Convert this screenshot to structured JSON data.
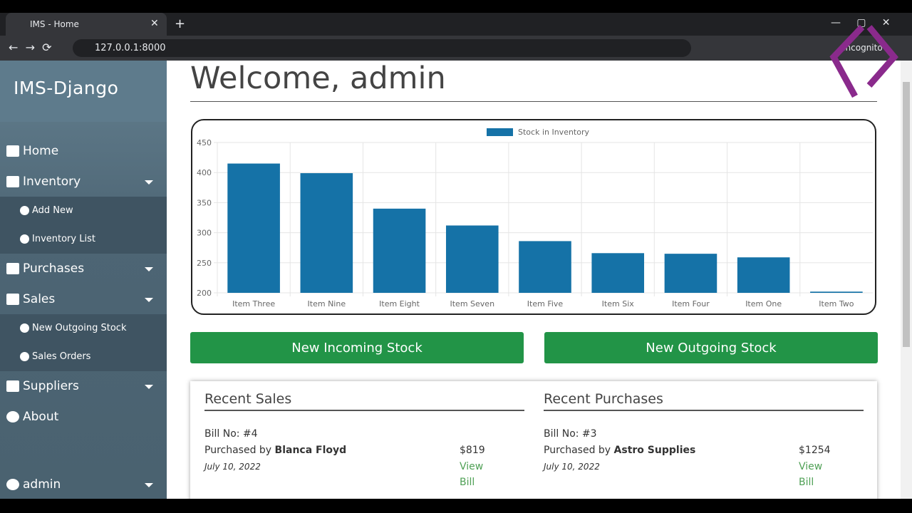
{
  "browser": {
    "tab_title": "IMS - Home",
    "url": "127.0.0.1:8000",
    "profile": "Incognito"
  },
  "sidebar": {
    "brand": "IMS-Django",
    "nav": [
      "Home",
      "Inventory",
      "Add New",
      "Inventory List",
      "Purchases",
      "Sales",
      "New Outgoing Stock",
      "Sales Orders",
      "Suppliers",
      "About"
    ],
    "user": "admin"
  },
  "header": {
    "title": "Welcome, admin"
  },
  "chart_data": {
    "type": "bar",
    "legend": "Stock in Inventory",
    "color": "#1572a7",
    "categories": [
      "Item Three",
      "Item Nine",
      "Item Eight",
      "Item Seven",
      "Item Five",
      "Item Six",
      "Item Four",
      "Item One",
      "Item Two"
    ],
    "values": [
      415,
      399,
      340,
      312,
      286,
      266,
      265,
      259,
      202
    ],
    "ylim": [
      200,
      450
    ],
    "yticks": [
      200,
      250,
      300,
      350,
      400,
      450
    ],
    "grid": true
  },
  "buttons": [
    "New Incoming Stock",
    "New Outgoing Stock"
  ],
  "recent": [
    {
      "title": "Recent Sales",
      "bill": "Bill No: #4",
      "by": "Purchased by",
      "name": "Blanca Floyd",
      "amount": "$819",
      "date": "July 10, 2022",
      "link": "View Bill"
    },
    {
      "title": "Recent Purchases",
      "bill": "Bill No: #3",
      "by": "Purchased by",
      "name": "Astro Supplies",
      "amount": "$1254",
      "date": "July 10, 2022",
      "link": "View Bill"
    }
  ]
}
